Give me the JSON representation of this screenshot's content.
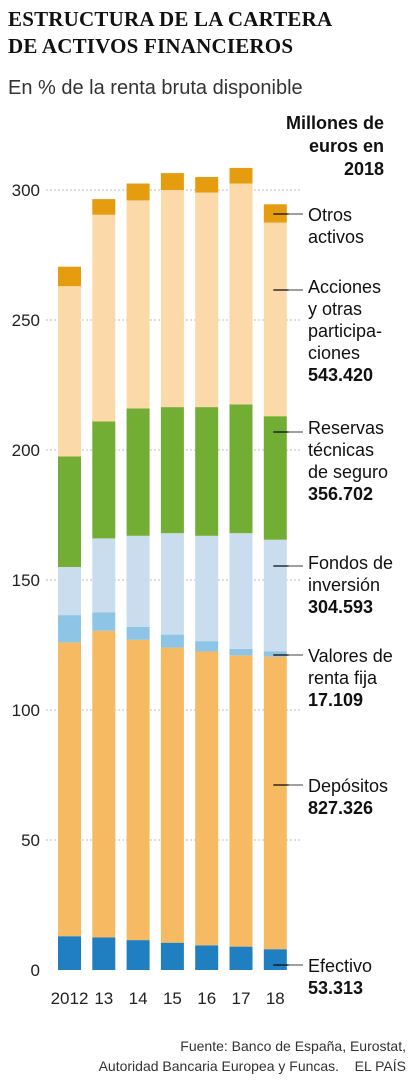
{
  "header": {
    "title_line1": "ESTRUCTURA DE LA CARTERA",
    "title_line2": "DE ACTIVOS FINANCIEROS",
    "subtitle": "En % de la renta bruta disponible",
    "unit_note": "Millones de euros en 2018"
  },
  "source": {
    "line1": "Fuente: Banco de España, Eurostat,",
    "line2": "Autoridad Bancaria Europea y Funcas.",
    "credit": "EL PAÍS"
  },
  "legend": [
    {
      "label": "Otros activos",
      "value": ""
    },
    {
      "label": "Acciones y otras participa-ciones",
      "value": "543.420"
    },
    {
      "label": "Reservas técnicas de seguro",
      "value": "356.702"
    },
    {
      "label": "Fondos de inversión",
      "value": "304.593"
    },
    {
      "label": "Valores de renta fija",
      "value": "17.109"
    },
    {
      "label": "Depósitos",
      "value": "827.326"
    },
    {
      "label": "Efectivo",
      "value": "53.313"
    }
  ],
  "chart_data": {
    "type": "bar",
    "stacked": true,
    "categories": [
      "2012",
      "13",
      "14",
      "15",
      "16",
      "17",
      "18"
    ],
    "ylim": [
      0,
      300
    ],
    "yticks": [
      0,
      50,
      100,
      150,
      200,
      250,
      300
    ],
    "grid": true,
    "series": [
      {
        "name": "Efectivo",
        "color": "#1f7fc0",
        "values": [
          13,
          12.5,
          11.5,
          10.5,
          9.5,
          9,
          8
        ]
      },
      {
        "name": "Depósitos",
        "color": "#f6ba63",
        "values": [
          113,
          118,
          115.5,
          113.5,
          113,
          112,
          112.5
        ]
      },
      {
        "name": "Valores de renta fija",
        "color": "#8ec4e6",
        "values": [
          10.5,
          7,
          5,
          5,
          4,
          2.5,
          2
        ]
      },
      {
        "name": "Fondos de inversión",
        "color": "#c9ddef",
        "values": [
          18.5,
          28.5,
          35,
          39,
          40.5,
          44.5,
          43
        ]
      },
      {
        "name": "Reservas técnicas de seguro",
        "color": "#72ae34",
        "values": [
          42.5,
          45,
          49,
          48.5,
          49.5,
          49.5,
          47.5
        ]
      },
      {
        "name": "Acciones y otras participaciones",
        "color": "#fbd9a9",
        "values": [
          65.5,
          79.5,
          80,
          83.5,
          82.5,
          85,
          74.5
        ]
      },
      {
        "name": "Otros activos",
        "color": "#e59c0f",
        "values": [
          7.5,
          6,
          6.5,
          6.5,
          6,
          6,
          7
        ]
      }
    ]
  }
}
